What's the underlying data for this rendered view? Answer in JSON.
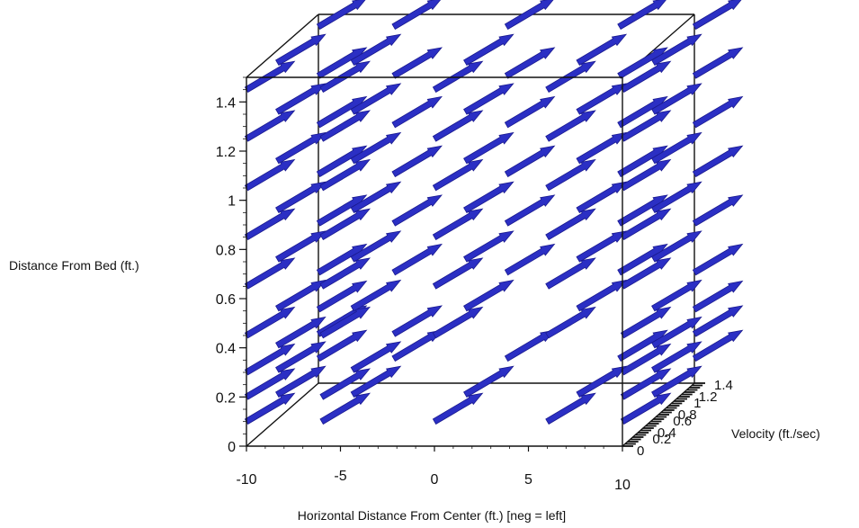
{
  "chart_data": {
    "type": "3d-vector-field",
    "xlabel": "Horizontal Distance From Center (ft.) [neg = left]",
    "ylabel": "Distance From Bed (ft.)",
    "zlabel": "Velocity (ft./sec)",
    "x_ticks": [
      "-10",
      "-5",
      "0",
      "5",
      "10"
    ],
    "y_ticks": [
      "0",
      "0.2",
      "0.4",
      "0.6",
      "0.8",
      "1",
      "1.2",
      "1.4"
    ],
    "z_ticks": [
      "0",
      "0.2",
      "0.4",
      "0.6",
      "0.8",
      "1",
      "1.2",
      "1.4"
    ],
    "xlim": [
      -10,
      10
    ],
    "ylim": [
      0,
      1.5
    ],
    "zlim": [
      0,
      1.4
    ],
    "arrow_color": "#2b2fc4",
    "arrow_outline_color": "#1a1a8f",
    "x_positions": [
      -10,
      -6,
      0,
      6,
      10
    ],
    "depth_values": [
      0.0,
      0.6,
      1.4
    ],
    "heights_by_column": [
      [
        0.1,
        0.2,
        0.3,
        0.45,
        0.65,
        0.85,
        1.05,
        1.25,
        1.45
      ],
      [
        0.1,
        0.2,
        0.45,
        0.65,
        0.85,
        1.05,
        1.25,
        1.45
      ],
      [
        0.1,
        0.45,
        0.65,
        0.85,
        1.05,
        1.25,
        1.45
      ],
      [
        0.1,
        0.45,
        0.65,
        0.85,
        1.05,
        1.25,
        1.45
      ],
      [
        0.1,
        0.2,
        0.3,
        0.45,
        0.65,
        0.85,
        1.05,
        1.25,
        1.45
      ]
    ]
  }
}
